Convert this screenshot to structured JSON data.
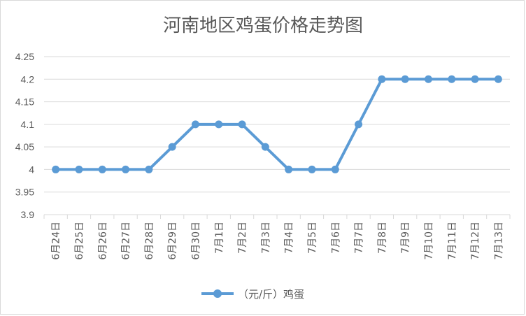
{
  "chart_data": {
    "type": "line",
    "title": "河南地区鸡蛋价格走势图",
    "categories": [
      "6月24日",
      "6月25日",
      "6月26日",
      "6月27日",
      "6月28日",
      "6月29日",
      "6月30日",
      "7月1日",
      "7月2日",
      "7月3日",
      "7月4日",
      "7月5日",
      "7月6日",
      "7月7日",
      "7月8日",
      "7月9日",
      "7月10日",
      "7月11日",
      "7月12日",
      "7月13日"
    ],
    "series": [
      {
        "name": "（元/斤）鸡蛋",
        "color": "#5b9bd5",
        "values": [
          4.0,
          4.0,
          4.0,
          4.0,
          4.0,
          4.05,
          4.1,
          4.1,
          4.1,
          4.05,
          4.0,
          4.0,
          4.0,
          4.1,
          4.2,
          4.2,
          4.2,
          4.2,
          4.2,
          4.2
        ]
      }
    ],
    "yticks": [
      "3.9",
      "3.95",
      "4",
      "4.05",
      "4.1",
      "4.15",
      "4.2",
      "4.25"
    ],
    "ylim": [
      3.9,
      4.25
    ],
    "grid": true,
    "legend_position": "bottom"
  }
}
